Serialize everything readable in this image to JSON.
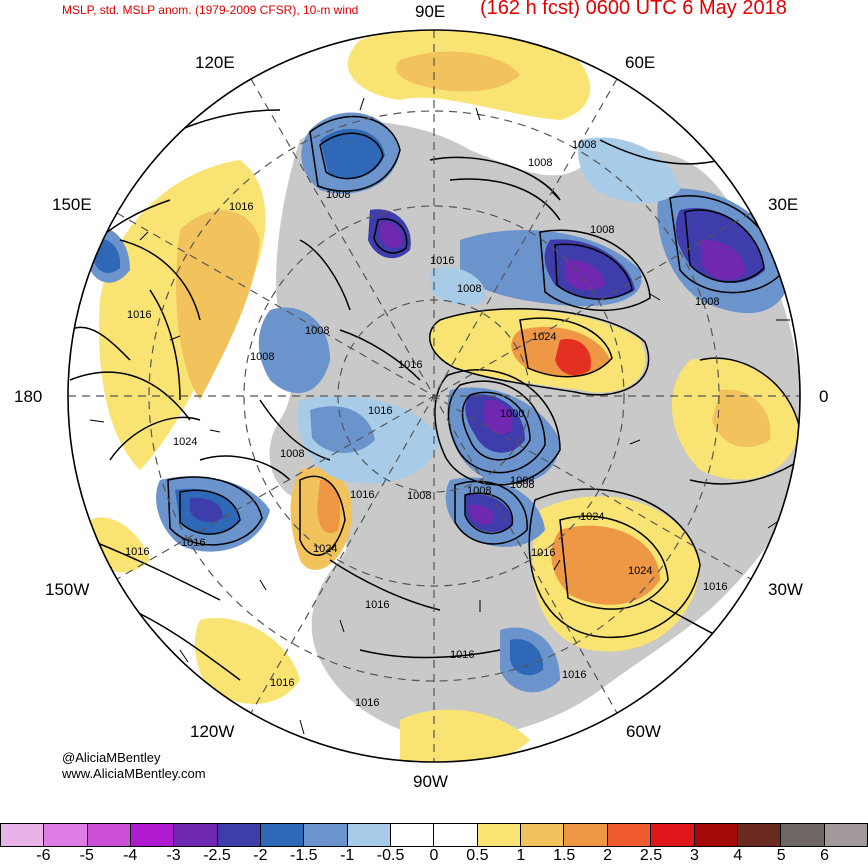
{
  "header": {
    "left_title": "MSLP, std. MSLP anom. (1979-2009 CFSR), 10-m wind",
    "right_title": "(162 h fcst) 0600 UTC 6 May 2018"
  },
  "longitude_labels": {
    "e90": "90E",
    "e60": "60E",
    "e120": "120E",
    "e150": "150E",
    "e30": "30E",
    "zero": "0",
    "w180": "180",
    "w150": "150W",
    "w30": "30W",
    "w120": "120W",
    "w60": "60W",
    "w90": "90W"
  },
  "isobar_labels": [
    "1008",
    "1008",
    "1008",
    "1016",
    "1008",
    "1016",
    "1008",
    "1024",
    "1016",
    "1016",
    "1008",
    "1008",
    "1008",
    "1016",
    "1000",
    "1008",
    "1016",
    "1008",
    "1008",
    "1008",
    "1024",
    "1016",
    "1016",
    "1024",
    "1024",
    "1016",
    "1016",
    "1016",
    "1016",
    "1016",
    "1016",
    "1024",
    "1008",
    "1016"
  ],
  "credit": {
    "handle": "@AliciaMBentley",
    "website": "www.AliciaMBentley.com"
  },
  "colorbar": {
    "colors": [
      "#e8b4e8",
      "#e07ce6",
      "#cc4fd8",
      "#b11bcf",
      "#7028b0",
      "#3f3cab",
      "#3068b8",
      "#6b93cc",
      "#a8cce8",
      "#ffffff",
      "#ffffff",
      "#f9e473",
      "#f2c35c",
      "#ee9744",
      "#f05a2f",
      "#e0171a",
      "#a50a0a",
      "#6b2a1f",
      "#6e6565",
      "#a29a9a"
    ],
    "labels": [
      "-6",
      "-5",
      "-4",
      "-3",
      "-2.5",
      "-2",
      "-1.5",
      "-1",
      "-0.5",
      "0",
      "0.5",
      "1",
      "1.5",
      "2",
      "2.5",
      "3",
      "4",
      "5",
      "6"
    ]
  }
}
